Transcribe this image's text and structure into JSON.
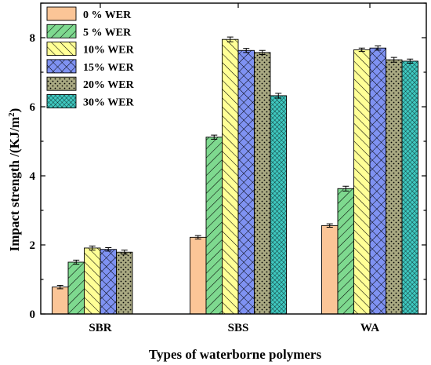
{
  "chart_data": {
    "type": "bar",
    "categories": [
      "SBR",
      "SBS",
      "WA"
    ],
    "xlabel": "Types of waterborne polymers",
    "ylabel": "Impact strength /(KJ/m²)",
    "ylim": [
      0,
      9
    ],
    "yticks": [
      0,
      2,
      4,
      6,
      8
    ],
    "legend_position": "top-left",
    "grid": false,
    "series": [
      {
        "name": "0 % WER",
        "values": [
          0.78,
          2.22,
          2.56
        ],
        "errors": [
          0.05,
          0.05,
          0.05
        ],
        "color": "#FBC597",
        "pattern": "solid"
      },
      {
        "name": "5 % WER",
        "values": [
          1.5,
          5.12,
          3.63
        ],
        "errors": [
          0.06,
          0.06,
          0.07
        ],
        "color": "#7ED98F",
        "pattern": "diag-right"
      },
      {
        "name": "10% WER",
        "values": [
          1.91,
          7.95,
          7.65
        ],
        "errors": [
          0.06,
          0.07,
          0.05
        ],
        "color": "#FFFF96",
        "pattern": "diag-left"
      },
      {
        "name": "15% WER",
        "values": [
          1.87,
          7.63,
          7.7
        ],
        "errors": [
          0.05,
          0.06,
          0.06
        ],
        "color": "#7F92F2",
        "pattern": "crosshatch"
      },
      {
        "name": "20% WER",
        "values": [
          1.79,
          7.57,
          7.36
        ],
        "errors": [
          0.06,
          0.06,
          0.07
        ],
        "color": "#A9A982",
        "pattern": "dots"
      },
      {
        "name": "30% WER",
        "values": [
          null,
          6.32,
          7.32
        ],
        "errors": [
          null,
          0.07,
          0.06
        ],
        "color": "#3FC8C0",
        "pattern": "grid"
      }
    ]
  }
}
